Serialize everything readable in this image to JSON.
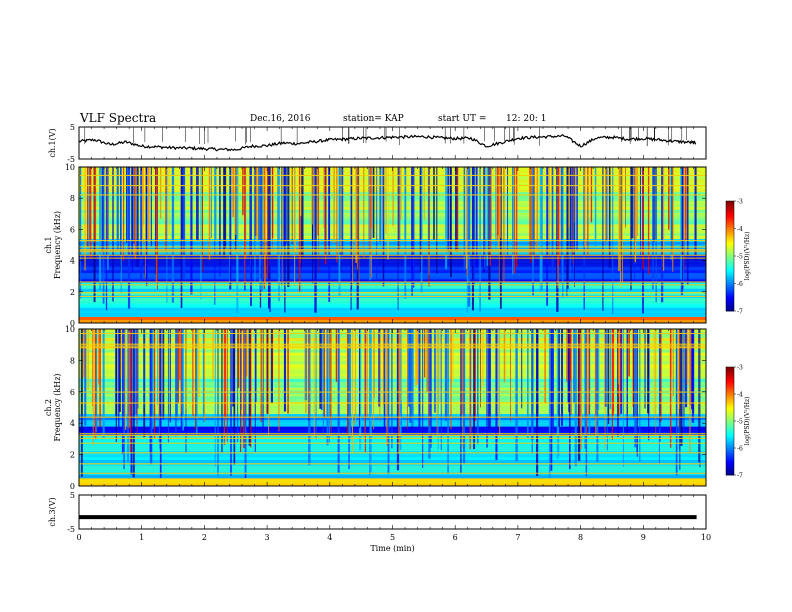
{
  "header": {
    "title": "VLF Spectra",
    "date": "Dec.16, 2016",
    "station": "station= KAP",
    "start_label": "start UT =",
    "start_time": "12: 20: 1"
  },
  "chart_data": [
    {
      "type": "line",
      "panel": "ch1-voltage",
      "ylabel": "ch.1(V)",
      "ylim": [
        -5,
        5
      ],
      "yticks": [
        "5",
        "-5"
      ],
      "xlim": [
        0,
        10
      ],
      "series": [
        {
          "x": [
            0,
            0.25,
            0.5,
            0.75,
            1.0,
            1.25,
            1.5,
            1.75,
            2.0,
            2.25,
            2.5,
            2.75,
            3.0,
            3.25,
            3.5,
            3.75,
            4.0,
            4.25,
            4.5,
            4.75,
            5.0,
            5.25,
            5.5,
            5.75,
            6.0,
            6.25,
            6.5,
            6.75,
            7.0,
            7.25,
            7.5,
            7.75,
            8.0,
            8.25,
            8.5,
            8.75,
            9.0,
            9.25,
            9.5,
            9.75,
            9.85
          ],
          "y": [
            0.5,
            1.0,
            -0.5,
            0.3,
            -1.0,
            -1.2,
            -1.5,
            -1.6,
            -1.8,
            -2.0,
            -2.1,
            -1.0,
            -0.8,
            0.0,
            -0.2,
            0.4,
            1.0,
            1.2,
            1.5,
            1.6,
            1.8,
            1.9,
            2.0,
            1.6,
            1.4,
            1.5,
            -1.0,
            0.2,
            1.5,
            1.8,
            2.0,
            2.2,
            -1.0,
            1.6,
            1.8,
            1.2,
            1.4,
            1.0,
            0.5,
            0.2,
            0.0
          ]
        }
      ]
    },
    {
      "type": "heatmap",
      "panel": "ch1-spectrogram",
      "ylabel": "ch.1 Frequency (kHz)",
      "ylim": [
        0,
        10
      ],
      "yticks": [
        "0",
        "2",
        "4",
        "6",
        "8",
        "10"
      ],
      "xlim": [
        0,
        10
      ],
      "value_range": [
        -7,
        -3
      ],
      "colorbar_label": "log(PSD)(V²/Hz)",
      "colorbar_ticks": [
        "-3",
        "-4",
        "-5",
        "-6",
        "-7"
      ],
      "bands": [
        {
          "from": 0.0,
          "to": 0.4,
          "level": -4.0
        },
        {
          "from": 0.4,
          "to": 1.0,
          "level": -5.6
        },
        {
          "from": 1.0,
          "to": 2.6,
          "level": -5.5
        },
        {
          "from": 2.6,
          "to": 3.6,
          "level": -6.4
        },
        {
          "from": 3.6,
          "to": 4.4,
          "level": -6.3
        },
        {
          "from": 4.4,
          "to": 5.4,
          "level": -5.8
        },
        {
          "from": 5.4,
          "to": 8.0,
          "level": -4.9
        },
        {
          "from": 8.0,
          "to": 10.0,
          "level": -4.8
        }
      ]
    },
    {
      "type": "heatmap",
      "panel": "ch2-spectrogram",
      "ylabel": "ch.2 Frequency (kHz)",
      "ylim": [
        0,
        10
      ],
      "yticks": [
        "0",
        "2",
        "4",
        "6",
        "8",
        "10"
      ],
      "xlim": [
        0,
        10
      ],
      "value_range": [
        -7,
        -3
      ],
      "colorbar_label": "log(PSD)(V²/Hz)",
      "colorbar_ticks": [
        "-3",
        "-4",
        "-5",
        "-6",
        "-7"
      ],
      "bands": [
        {
          "from": 0.0,
          "to": 0.5,
          "level": -4.2
        },
        {
          "from": 0.5,
          "to": 3.2,
          "level": -5.6
        },
        {
          "from": 3.2,
          "to": 3.8,
          "level": -6.4
        },
        {
          "from": 3.8,
          "to": 4.6,
          "level": -5.9
        },
        {
          "from": 4.6,
          "to": 7.0,
          "level": -5.0
        },
        {
          "from": 7.0,
          "to": 10.0,
          "level": -4.7
        }
      ]
    },
    {
      "type": "line",
      "panel": "ch3-voltage",
      "ylabel": "ch.3(V)",
      "ylim": [
        -5,
        5
      ],
      "yticks": [
        "5",
        "-5"
      ],
      "xlim": [
        0,
        10
      ],
      "xticks": [
        "0",
        "1",
        "2",
        "3",
        "4",
        "5",
        "6",
        "7",
        "8",
        "9",
        "10"
      ],
      "xlabel": "Time (min)",
      "series": [
        {
          "x": [
            0,
            9.85
          ],
          "y": [
            -1.5,
            -1.5
          ]
        }
      ]
    }
  ]
}
